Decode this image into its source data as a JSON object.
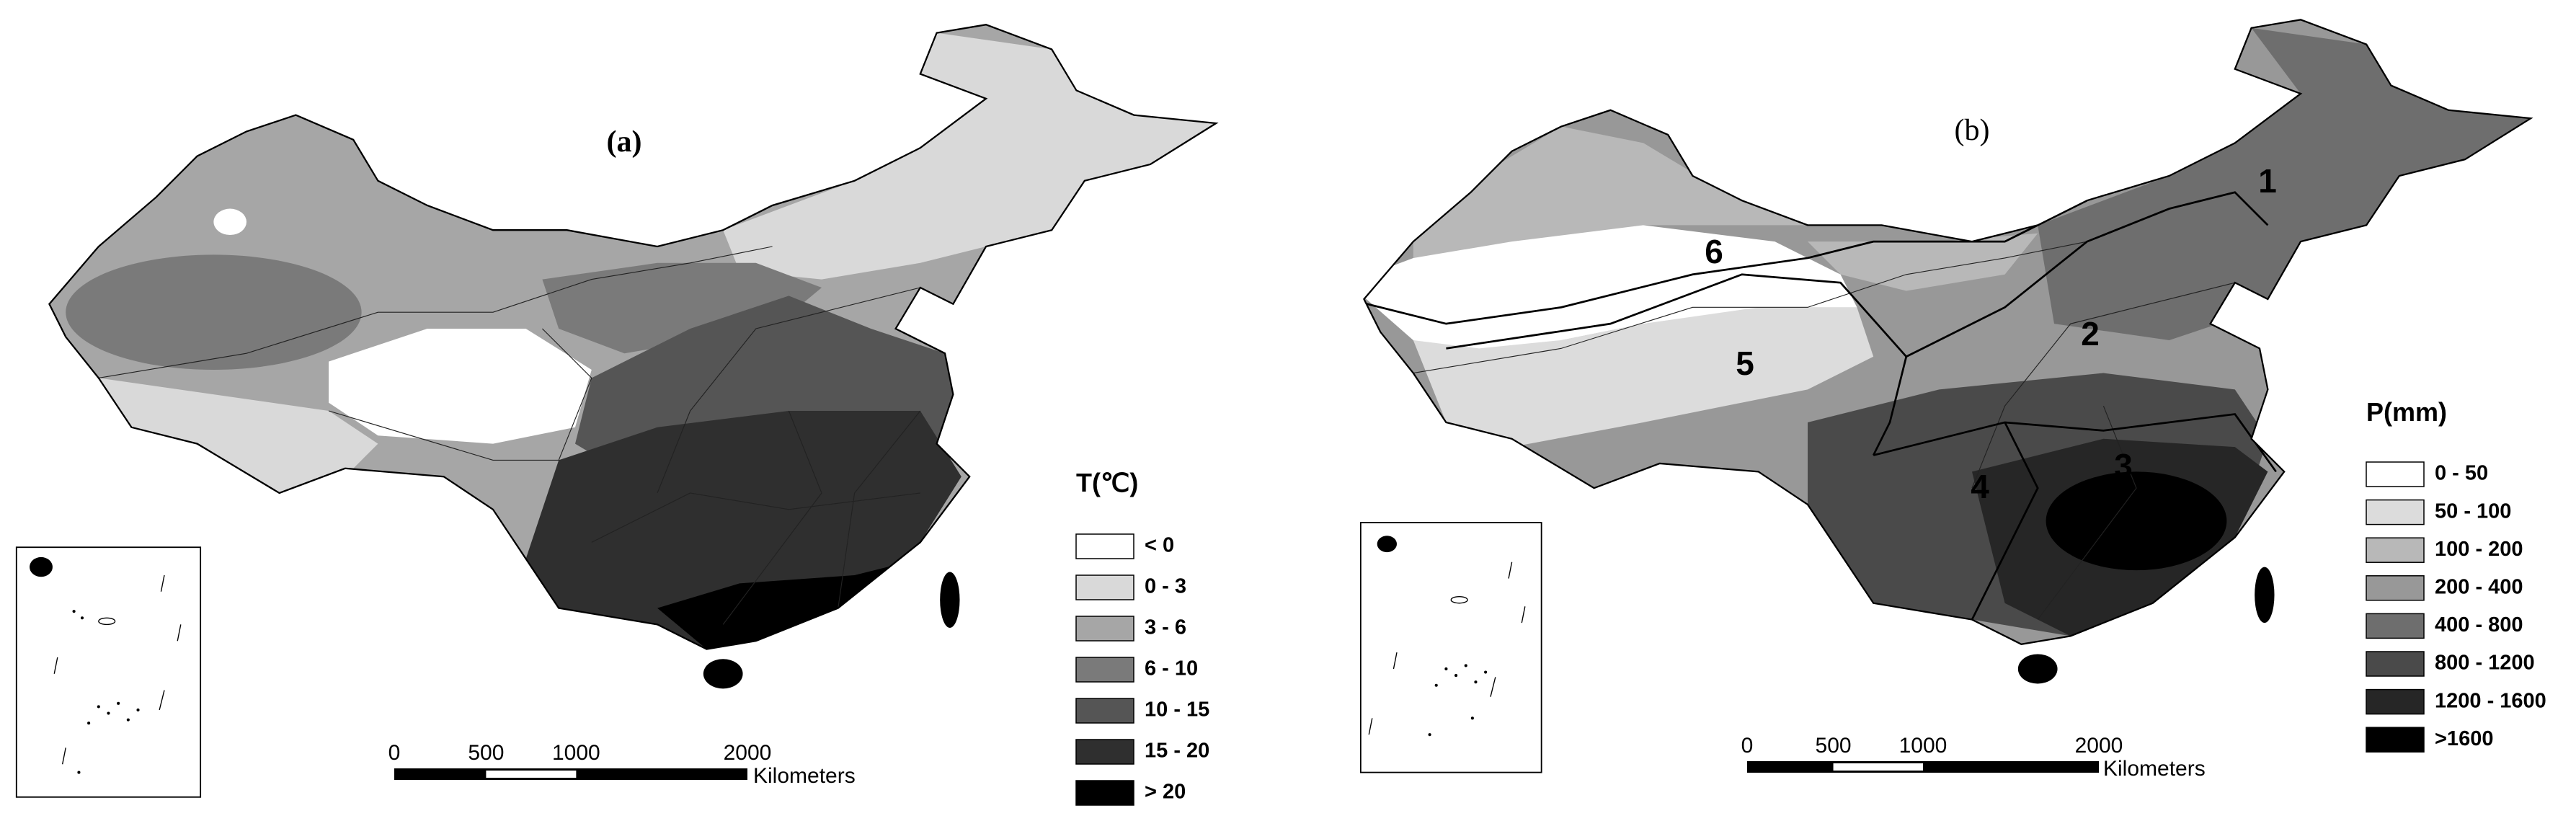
{
  "panels": [
    {
      "label": "(a)",
      "legend": {
        "title": "T(℃)",
        "items": [
          "< 0",
          "0 - 3",
          "3 - 6",
          "6 - 10",
          "10 - 15",
          "15 - 20",
          "> 20"
        ],
        "colors": [
          "#ffffff",
          "#d9d9d9",
          "#a6a6a6",
          "#7a7a7a",
          "#555555",
          "#2f2f2f",
          "#000000"
        ]
      },
      "scale_bar": {
        "labels": [
          "0",
          "500",
          "1000",
          "2000"
        ],
        "unit": "Kilometers"
      }
    },
    {
      "label": "(b)",
      "legend": {
        "title": "P(mm)",
        "items": [
          "0 - 50",
          "50 - 100",
          "100 - 200",
          "200 - 400",
          "400 - 800",
          "800 - 1200",
          "1200 - 1600",
          ">1600"
        ],
        "colors": [
          "#ffffff",
          "#dcdcdc",
          "#b8b8b8",
          "#989898",
          "#6e6e6e",
          "#4a4a4a",
          "#262626",
          "#000000"
        ]
      },
      "scale_bar": {
        "labels": [
          "0",
          "500",
          "1000",
          "2000"
        ],
        "unit": "Kilometers"
      },
      "regions": [
        "1",
        "2",
        "3",
        "4",
        "5",
        "6"
      ]
    }
  ]
}
